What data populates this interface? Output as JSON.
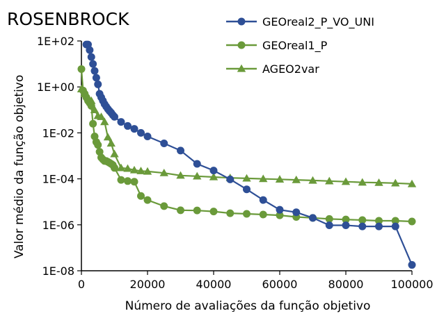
{
  "chart_data": {
    "type": "line",
    "title": "ROSENBROCK",
    "xlabel": "Número de avaliações da função objetivo",
    "ylabel": "Valor médio da função objetivo",
    "xlim": [
      0,
      100000
    ],
    "ylim": [
      1e-08,
      100
    ],
    "yscale": "log",
    "grid": false,
    "legend_position": "top-right",
    "x_ticks": [
      {
        "value": 0,
        "label": "0"
      },
      {
        "value": 20000,
        "label": "20000"
      },
      {
        "value": 40000,
        "label": "40000"
      },
      {
        "value": 60000,
        "label": "60000"
      },
      {
        "value": 80000,
        "label": "80000"
      },
      {
        "value": 100000,
        "label": "100000"
      }
    ],
    "y_ticks": [
      {
        "value": 100,
        "label": "1E+02"
      },
      {
        "value": 1,
        "label": "1E+00"
      },
      {
        "value": 0.01,
        "label": "1E-02"
      },
      {
        "value": 0.0001,
        "label": "1E-04"
      },
      {
        "value": 1e-06,
        "label": "1E-06"
      },
      {
        "value": 1e-08,
        "label": "1E-08"
      }
    ],
    "series": [
      {
        "name": "GEOreal2_P_VO_UNI",
        "color": "#2e4f96",
        "marker": "circle",
        "x": [
          1500,
          2000,
          2500,
          3000,
          3500,
          4000,
          4500,
          5000,
          5500,
          6000,
          6500,
          7000,
          7500,
          8000,
          8500,
          9000,
          9500,
          10000,
          12000,
          14000,
          16000,
          18000,
          20000,
          25000,
          30000,
          35000,
          40000,
          45000,
          50000,
          55000,
          60000,
          65000,
          70000,
          75000,
          80000,
          85000,
          90000,
          95000,
          100000
        ],
        "y": [
          70,
          70,
          40,
          20,
          10,
          5,
          2.5,
          1.3,
          0.5,
          0.35,
          0.25,
          0.18,
          0.14,
          0.11,
          0.09,
          0.075,
          0.06,
          0.05,
          0.03,
          0.02,
          0.015,
          0.01,
          0.007,
          0.0035,
          0.0017,
          0.00045,
          0.00023,
          9.5e-05,
          3.5e-05,
          1.2e-05,
          4.5e-06,
          3.5e-06,
          2e-06,
          9.5e-07,
          9.5e-07,
          8.5e-07,
          8.5e-07,
          8.5e-07,
          1.8e-08
        ]
      },
      {
        "name": "GEOreal1_P",
        "color": "#6a9a3a",
        "marker": "circle",
        "x": [
          0,
          500,
          1000,
          1500,
          2000,
          2500,
          3000,
          3500,
          4000,
          4500,
          5000,
          5500,
          6000,
          6500,
          7000,
          7500,
          8000,
          8500,
          9000,
          9500,
          10000,
          12000,
          14000,
          16000,
          18000,
          20000,
          25000,
          30000,
          35000,
          40000,
          45000,
          50000,
          55000,
          60000,
          65000,
          70000,
          75000,
          80000,
          85000,
          90000,
          95000,
          100000
        ],
        "y": [
          6,
          0.7,
          0.5,
          0.35,
          0.25,
          0.2,
          0.15,
          0.025,
          0.007,
          0.004,
          0.003,
          0.0015,
          0.00085,
          0.0007,
          0.0006,
          0.0006,
          0.00055,
          0.0005,
          0.00045,
          0.0004,
          0.0003,
          9e-05,
          8e-05,
          7.5e-05,
          1.8e-05,
          1.2e-05,
          6.5e-06,
          4.3e-06,
          4.2e-06,
          3.8e-06,
          3.2e-06,
          3e-06,
          2.8e-06,
          2.6e-06,
          2.2e-06,
          2e-06,
          1.8e-06,
          1.7e-06,
          1.6e-06,
          1.5e-06,
          1.5e-06,
          1.4e-06
        ]
      },
      {
        "name": "AGEO2var",
        "color": "#6a9a3a",
        "marker": "triangle",
        "x": [
          0,
          1000,
          2000,
          3000,
          4000,
          5000,
          6000,
          7000,
          8000,
          9000,
          10000,
          12000,
          14000,
          16000,
          18000,
          20000,
          25000,
          30000,
          35000,
          40000,
          45000,
          50000,
          55000,
          60000,
          65000,
          70000,
          75000,
          80000,
          85000,
          90000,
          95000,
          100000
        ],
        "y": [
          0.8,
          0.5,
          0.35,
          0.25,
          0.1,
          0.055,
          0.05,
          0.03,
          0.0065,
          0.0035,
          0.0012,
          0.0003,
          0.00028,
          0.00024,
          0.00022,
          0.00021,
          0.00018,
          0.00014,
          0.00013,
          0.00012,
          0.00011,
          0.000105,
          0.0001,
          9.5e-05,
          9e-05,
          8.5e-05,
          8e-05,
          7.5e-05,
          7e-05,
          6.8e-05,
          6.5e-05,
          6e-05
        ]
      }
    ]
  }
}
